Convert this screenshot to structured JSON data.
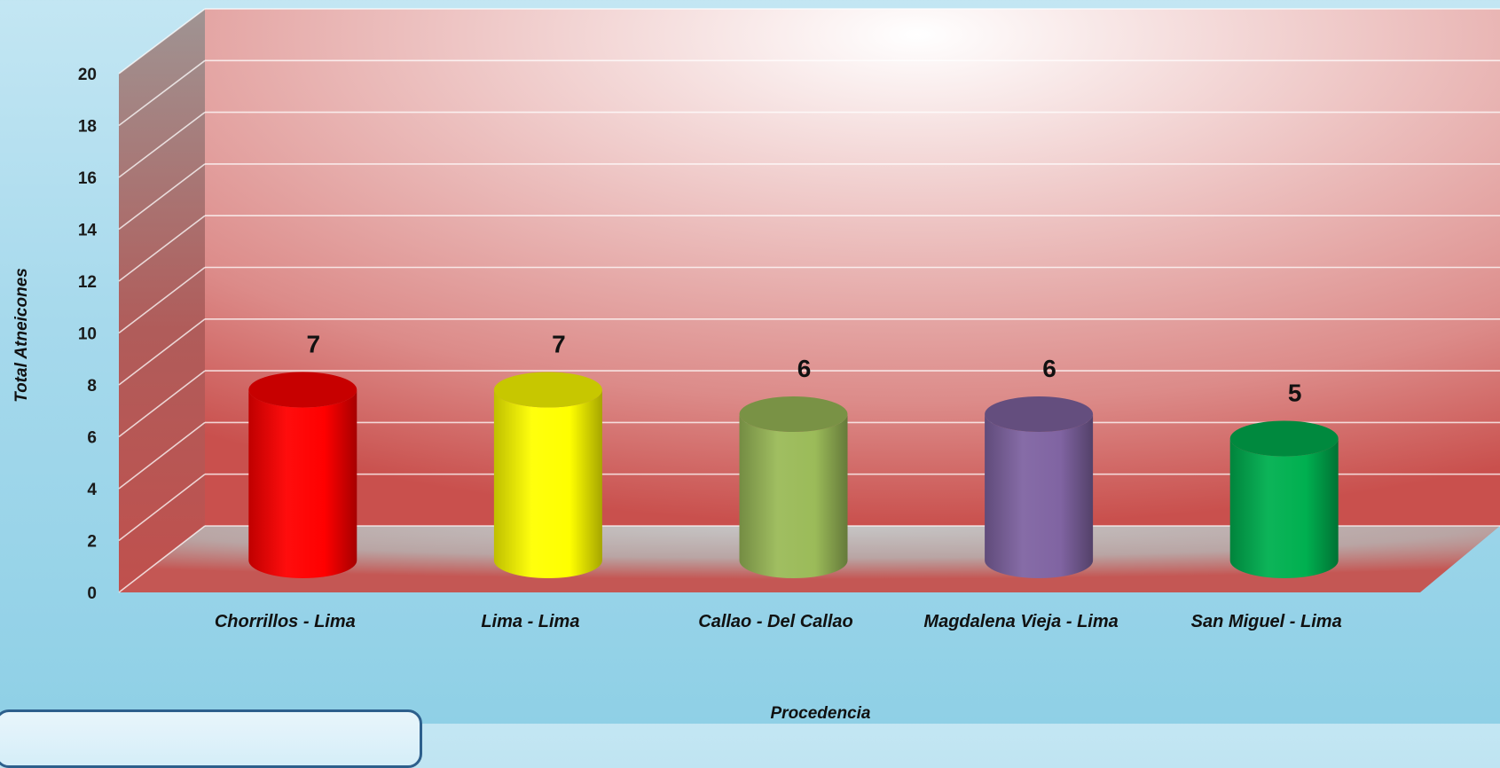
{
  "chart_data": {
    "type": "bar",
    "style": "3d-cylinder",
    "categories": [
      "Chorrillos - Lima",
      "Lima - Lima",
      "Callao - Del Callao",
      "Magdalena Vieja - Lima",
      "San Miguel - Lima"
    ],
    "values": [
      7,
      7,
      6,
      6,
      5
    ],
    "data_labels": [
      "7",
      "7",
      "6",
      "6",
      "5"
    ],
    "colors": [
      "#ff0000",
      "#ffff00",
      "#9bbb59",
      "#8064a2",
      "#00b050"
    ],
    "xlabel": "Procedencia",
    "ylabel": "Total Atneicones",
    "ylim": [
      0,
      20
    ],
    "yticks": [
      0,
      2,
      4,
      6,
      8,
      10,
      12,
      14,
      16,
      18,
      20
    ],
    "grid": true,
    "legend": "none",
    "back_wall_color": "#c0504d",
    "floor_color": "#bfbfbf"
  }
}
